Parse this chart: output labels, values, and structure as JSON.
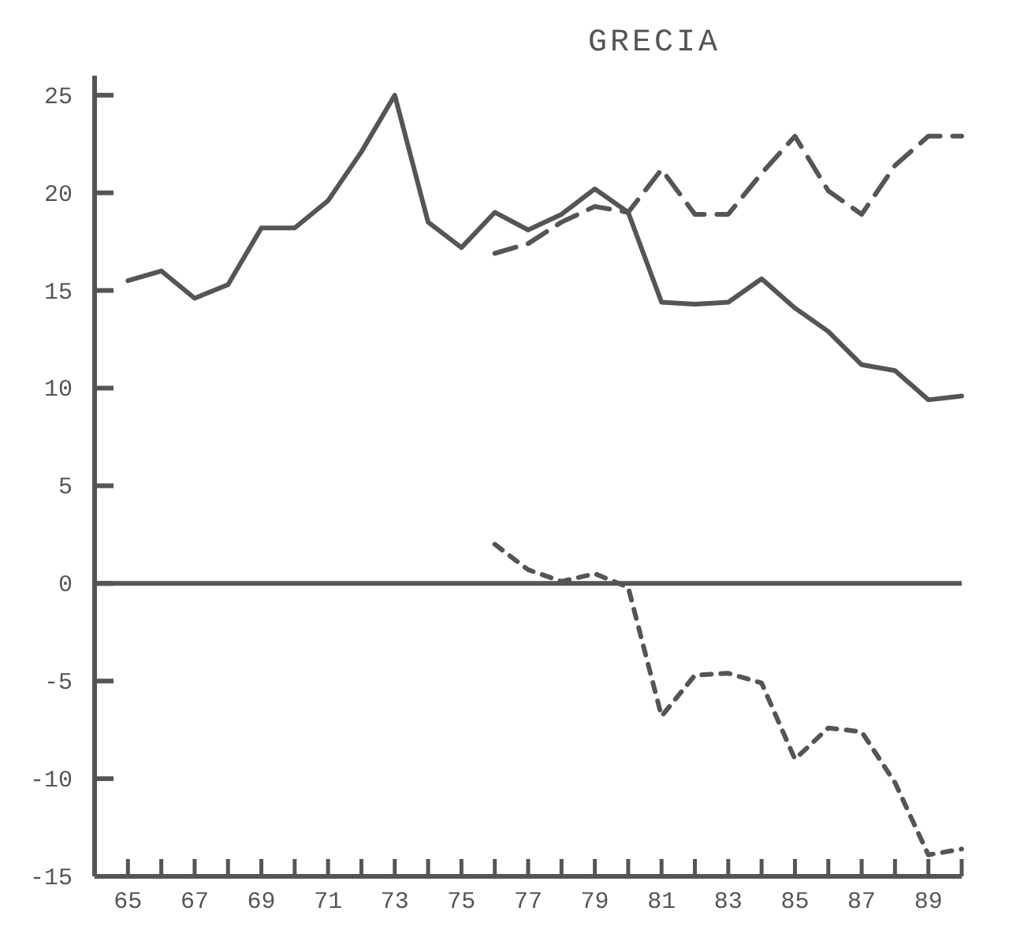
{
  "chart_data": {
    "type": "line",
    "title": "GRECIA",
    "xlim": [
      64,
      90
    ],
    "xticks": [
      65,
      {
        "value": 66,
        "label": null
      },
      67,
      {
        "value": 68,
        "label": null
      },
      69,
      {
        "value": 70,
        "label": null
      },
      71,
      {
        "value": 72,
        "label": null
      },
      73,
      {
        "value": 74,
        "label": null
      },
      75,
      {
        "value": 76,
        "label": null
      },
      77,
      {
        "value": 78,
        "label": null
      },
      79,
      {
        "value": 80,
        "label": null
      },
      81,
      {
        "value": 82,
        "label": null
      },
      83,
      {
        "value": 84,
        "label": null
      },
      85,
      {
        "value": 86,
        "label": null
      },
      87,
      {
        "value": 88,
        "label": null
      },
      89,
      {
        "value": 90,
        "label": null
      }
    ],
    "ylim": [
      -15,
      26
    ],
    "yticks": [
      -15,
      -10,
      -5,
      0,
      5,
      10,
      15,
      20,
      25
    ],
    "ref_lines": [
      {
        "axis": "y",
        "value": 0,
        "label": null,
        "line_style": "solid",
        "color": "#555555"
      }
    ],
    "series": [
      {
        "color": "#555555",
        "line_style": "solid",
        "x": [
          65,
          66,
          67,
          68,
          69,
          70,
          71,
          72,
          73,
          74,
          75,
          76,
          77,
          78,
          79,
          80,
          81,
          82,
          83,
          84,
          85,
          86,
          87,
          88,
          89,
          90
        ],
        "values": [
          15.5,
          16.0,
          14.6,
          15.3,
          18.2,
          18.2,
          19.6,
          22.1,
          25.0,
          18.5,
          17.2,
          19.0,
          18.1,
          18.9,
          20.2,
          19.0,
          14.4,
          14.3,
          14.4,
          15.6,
          14.1,
          12.9,
          11.2,
          10.9,
          9.4,
          9.6
        ]
      },
      {
        "color": "#555555",
        "line_style": "dashed",
        "x": [
          76,
          77,
          78,
          79,
          80,
          81,
          82,
          83,
          84,
          85,
          86,
          87,
          88,
          89,
          90
        ],
        "values": [
          16.9,
          17.4,
          18.5,
          19.3,
          19.0,
          21.2,
          18.9,
          18.9,
          21.0,
          22.9,
          20.1,
          18.9,
          21.4,
          22.9,
          22.9
        ]
      },
      {
        "color": "#555555",
        "line_style": "dotted",
        "x": [
          76,
          77,
          78,
          79,
          80,
          81,
          82,
          83,
          84,
          85,
          86,
          87,
          88,
          89,
          90
        ],
        "values": [
          2.0,
          0.7,
          0.1,
          0.5,
          -0.2,
          -6.8,
          -4.7,
          -4.6,
          -5.1,
          -9.0,
          -7.4,
          -7.6,
          -10.2,
          -13.9,
          -13.6
        ]
      }
    ]
  }
}
